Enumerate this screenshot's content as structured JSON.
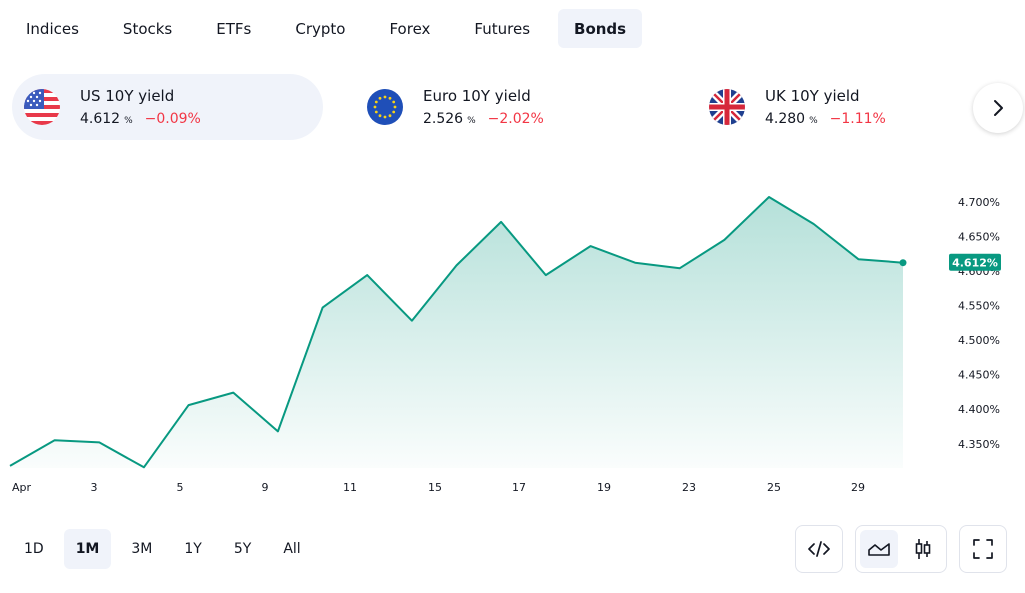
{
  "tabs": [
    {
      "label": "Indices",
      "active": false
    },
    {
      "label": "Stocks",
      "active": false
    },
    {
      "label": "ETFs",
      "active": false
    },
    {
      "label": "Crypto",
      "active": false
    },
    {
      "label": "Forex",
      "active": false
    },
    {
      "label": "Futures",
      "active": false
    },
    {
      "label": "Bonds",
      "active": true
    }
  ],
  "cards": [
    {
      "title": "US 10Y yield",
      "value": "4.612",
      "unit": "%",
      "change": "−0.09%",
      "flag": "us-flag-icon",
      "active": true
    },
    {
      "title": "Euro 10Y yield",
      "value": "2.526",
      "unit": "%",
      "change": "−2.02%",
      "flag": "eu-flag-icon",
      "active": false
    },
    {
      "title": "UK 10Y yield",
      "value": "4.280",
      "unit": "%",
      "change": "−1.11%",
      "flag": "uk-flag-icon",
      "active": false
    }
  ],
  "chart_data": {
    "type": "area",
    "title": "",
    "xlabel": "",
    "ylabel": "",
    "x_ticks": [
      {
        "label": "Apr",
        "day": 1
      },
      {
        "label": "3",
        "day": 3
      },
      {
        "label": "5",
        "day": 5
      },
      {
        "label": "9",
        "day": 9
      },
      {
        "label": "11",
        "day": 11
      },
      {
        "label": "15",
        "day": 15
      },
      {
        "label": "17",
        "day": 17
      },
      {
        "label": "19",
        "day": 19
      },
      {
        "label": "23",
        "day": 23
      },
      {
        "label": "25",
        "day": 25
      },
      {
        "label": "29",
        "day": 29
      }
    ],
    "y_ticks": [
      "4.350%",
      "4.400%",
      "4.450%",
      "4.500%",
      "4.550%",
      "4.600%",
      "4.650%",
      "4.700%"
    ],
    "y_tick_values": [
      4.35,
      4.4,
      4.45,
      4.5,
      4.55,
      4.6,
      4.65,
      4.7
    ],
    "ylim": [
      4.315,
      4.72
    ],
    "series": [
      {
        "points": [
          {
            "day": 1,
            "y": 4.318
          },
          {
            "day": 2,
            "y": 4.355
          },
          {
            "day": 3,
            "y": 4.352
          },
          {
            "day": 4,
            "y": 4.316
          },
          {
            "day": 5,
            "y": 4.406
          },
          {
            "day": 6,
            "y": 4.424
          },
          {
            "day": 7,
            "y": 4.368
          },
          {
            "day": 8,
            "y": 4.547
          },
          {
            "day": 9,
            "y": 4.594
          },
          {
            "day": 10,
            "y": 4.528
          },
          {
            "day": 11,
            "y": 4.608
          },
          {
            "day": 12,
            "y": 4.671
          },
          {
            "day": 13,
            "y": 4.594
          },
          {
            "day": 14,
            "y": 4.636
          },
          {
            "day": 15,
            "y": 4.612
          },
          {
            "day": 16,
            "y": 4.604
          },
          {
            "day": 17,
            "y": 4.645
          },
          {
            "day": 18,
            "y": 4.707
          },
          {
            "day": 19,
            "y": 4.668
          },
          {
            "day": 20,
            "y": 4.617
          },
          {
            "day": 21,
            "y": 4.612
          }
        ]
      }
    ],
    "last_value_label": "4.612%",
    "line_color": "#089981",
    "badge_color": "#089981",
    "grid": false
  },
  "ranges": [
    {
      "label": "1D",
      "active": false
    },
    {
      "label": "1M",
      "active": true
    },
    {
      "label": "3M",
      "active": false
    },
    {
      "label": "1Y",
      "active": false
    },
    {
      "label": "5Y",
      "active": false
    },
    {
      "label": "All",
      "active": false
    }
  ],
  "tools": {
    "embed": "code-icon",
    "area_chart": "area-chart-icon",
    "candles": "candlestick-icon",
    "fullscreen": "fullscreen-icon"
  },
  "colors": {
    "negative": "#f23645",
    "accent": "#089981",
    "active_bg": "#f0f3fa"
  }
}
